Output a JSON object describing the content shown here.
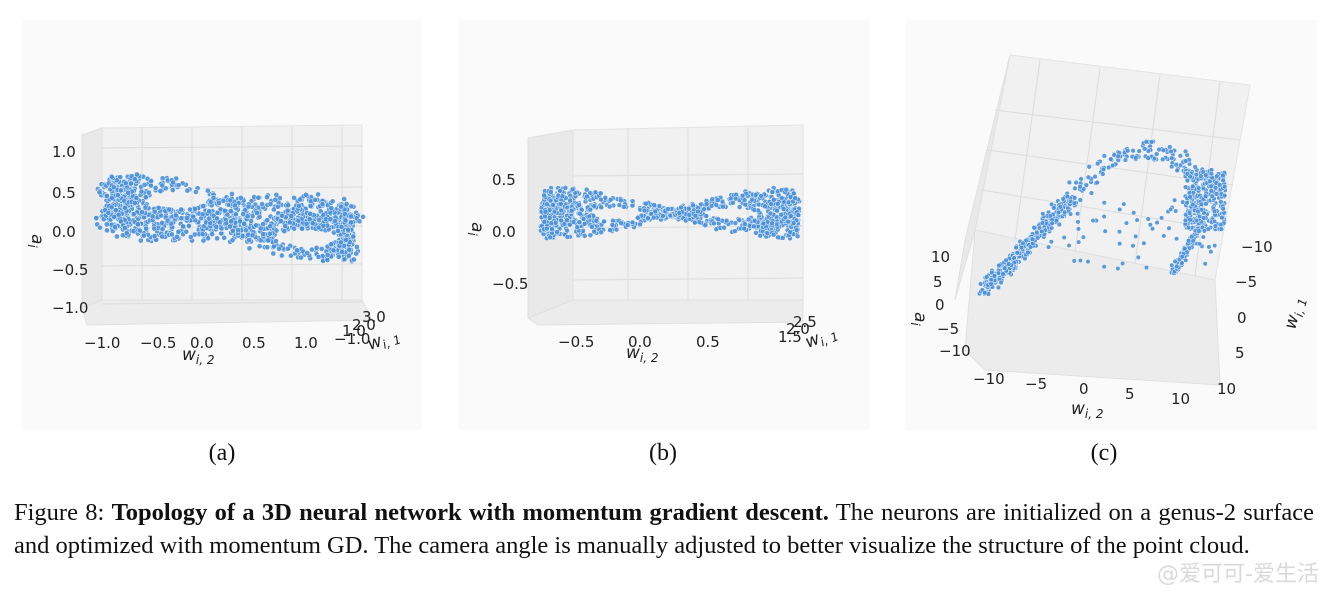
{
  "figure": {
    "label": "Figure 8:",
    "title": "Topology of a 3D neural network with momentum gradient descent.",
    "text": "The neurons are initialized on a genus-2 surface and optimized with momentum GD. The camera angle is manually adjusted to better visualize the structure of the point cloud."
  },
  "watermark": "@爱可可-爱生活",
  "colors": {
    "point": "#4a90d9",
    "point_edge": "#ffffff",
    "pane": "#f2f2f2",
    "grid": "#d9d9d9"
  },
  "chart_data": [
    {
      "type": "scatter",
      "panel_label": "(a)",
      "description_series": "genus-2 surface point cloud",
      "zlabel": "a_i",
      "xlabel": "w_{i,2}",
      "ylabel": "w_{i,1}",
      "x_ticks": [
        "−1.0",
        "−0.5",
        "0.0",
        "0.5",
        "1.0"
      ],
      "y_ticks": [
        "3.0",
        "2.0",
        "1.0",
        "−1.0"
      ],
      "z_ticks": [
        "1.0",
        "0.5",
        "0.0",
        "−0.5",
        "−1.0"
      ],
      "xlim": [
        -1.2,
        1.4
      ],
      "zlim": [
        -1.1,
        1.1
      ]
    },
    {
      "type": "scatter",
      "panel_label": "(b)",
      "zlabel": "a_i",
      "xlabel": "w_{i,2}",
      "ylabel": "w_{i,1}",
      "x_ticks": [
        "−0.5",
        "0.0",
        "0.5"
      ],
      "y_ticks": [
        "2.5",
        "2.0",
        "1.5"
      ],
      "z_ticks": [
        "0.5",
        "0.0",
        "−0.5"
      ],
      "xlim": [
        -0.8,
        0.9
      ],
      "zlim": [
        -0.8,
        0.8
      ]
    },
    {
      "type": "scatter",
      "panel_label": "(c)",
      "zlabel": "a_i",
      "xlabel": "w_{i,2}",
      "ylabel": "w_{i,1}",
      "x_ticks": [
        "−10",
        "−5",
        "0",
        "5",
        "10"
      ],
      "y_ticks": [
        "−10",
        "−5",
        "0",
        "5",
        "10"
      ],
      "z_ticks": [
        "10",
        "5",
        "0",
        "−5",
        "−10"
      ],
      "xlim": [
        -12,
        12
      ],
      "ylim": [
        -12,
        12
      ],
      "zlim": [
        -12,
        12
      ]
    }
  ]
}
